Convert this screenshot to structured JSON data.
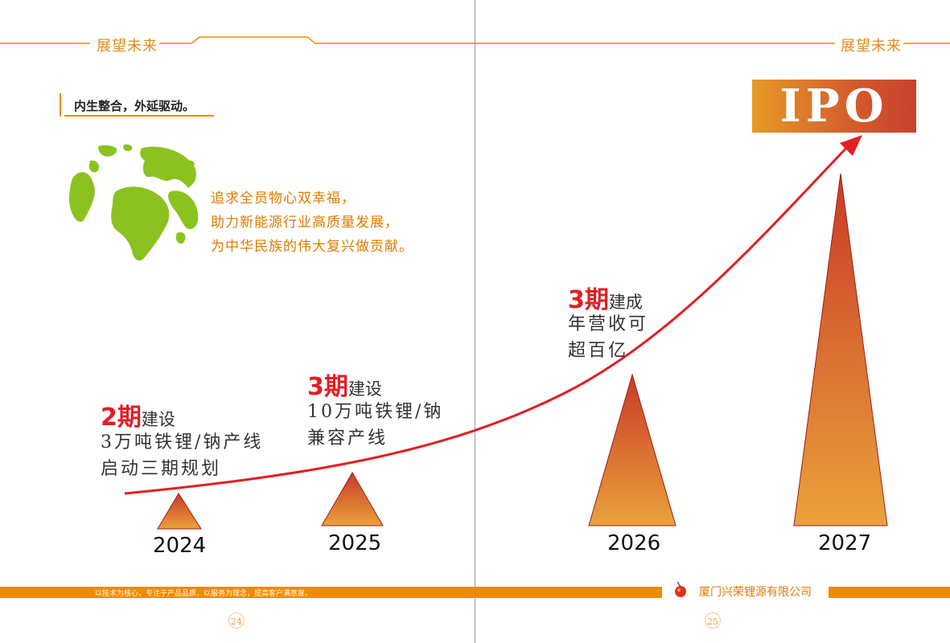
{
  "left_page": {
    "header": "展望未来",
    "subheading": "内生整合，外延驱动。",
    "slogan": [
      "追求全员物心双幸福，",
      "助力新能源行业高质量发展，",
      "为中华民族的伟大复兴做贡献。"
    ],
    "footer_motto": "以技术为核心，专注于产品品质，以服务为理念，提高客户满意度。",
    "page_number": "24"
  },
  "right_page": {
    "header": "展望未来",
    "ipo_label": "IPO",
    "company": "厦门兴荣锂源有限公司",
    "page_number": "25"
  },
  "timeline": [
    {
      "year": "2024",
      "phase_num": "2期",
      "phase_word": "建设",
      "desc": [
        "3万吨铁锂/钠产线",
        "启动三期规划"
      ]
    },
    {
      "year": "2025",
      "phase_num": "3期",
      "phase_word": "建设",
      "desc": [
        "10万吨铁锂/钠",
        "兼容产线"
      ]
    },
    {
      "year": "2026",
      "phase_num": "3期",
      "phase_word": "建成",
      "desc": [
        "年营收可",
        "超百亿"
      ]
    },
    {
      "year": "2027"
    }
  ],
  "colors": {
    "accent_orange": "#f08a00",
    "arrow_red": "#e31e24",
    "globe_green": "#8cc21f"
  }
}
